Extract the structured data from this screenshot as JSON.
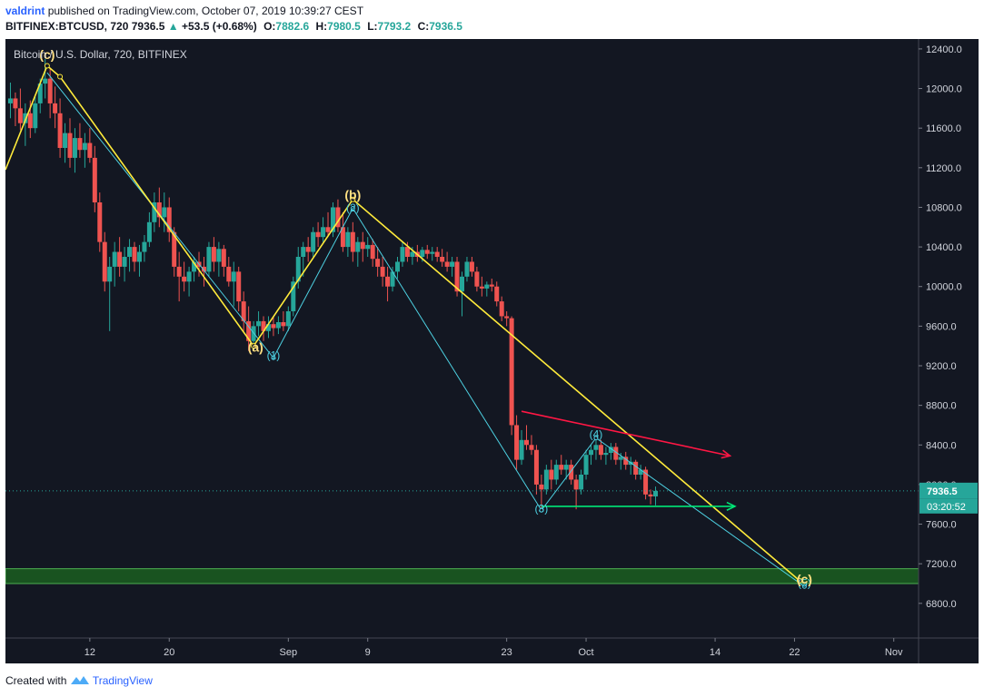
{
  "header": {
    "author": "valdrint",
    "published_text": "published on TradingView.com, October 07, 2019 10:39:27 CEST",
    "symbol": "BITFINEX:BTCUSD",
    "interval": "720",
    "last": "7936.5",
    "change": "+53.5 (+0.68%)",
    "open_label": "O:",
    "open": "7882.6",
    "high_label": "H:",
    "high": "7980.5",
    "low_label": "L:",
    "low": "7793.2",
    "close_label": "C:",
    "close": "7936.5"
  },
  "footer": {
    "created_with": "Created with",
    "brand": "TradingView"
  },
  "colors": {
    "background": "#131722",
    "up": "#26a69a",
    "down": "#ef5350",
    "wave_yellow": "#ffeb3b",
    "wave_cyan": "#4dd0e1",
    "resistance_red": "#ff1744",
    "support_green": "#00e676",
    "zone_green": "#1b5e20"
  },
  "chart_data": {
    "type": "candlestick",
    "title": "Bitcoin / U.S. Dollar, 720, BITFINEX",
    "legend": "Bitcoin / U.S. Dollar, 720, BITFINEX",
    "grid": false,
    "y_axis": {
      "ticks": [
        6800,
        7200,
        7600,
        8000,
        8400,
        8800,
        9200,
        9600,
        10000,
        10400,
        10800,
        11200,
        11600,
        12000,
        12400
      ],
      "tick_labels": [
        "6800.0",
        "7200.0",
        "7600.0",
        "8000.0",
        "8400.0",
        "8800.0",
        "9200.0",
        "9600.0",
        "10000.0",
        "10400.0",
        "10800.0",
        "11200.0",
        "11600.0",
        "12000.0",
        "12400.0"
      ],
      "range": [
        6450,
        12500
      ]
    },
    "x_axis": {
      "labels": [
        "12",
        "20",
        "Sep",
        "9",
        "23",
        "Oct",
        "14",
        "22",
        "Nov"
      ],
      "label_days": [
        12,
        20,
        32,
        40,
        54,
        62,
        75,
        83,
        93
      ],
      "range_days": [
        3.5,
        95.5
      ],
      "day_note": "days counted from Aug 0, 2019 (Sep 1 = 32, Oct 1 = 62)"
    },
    "current_price": {
      "value": 7936.5,
      "label": "7936.5",
      "countdown": "03:20:52"
    },
    "wave_labels": [
      {
        "text": "(c)",
        "day": 7.7,
        "price": 12300,
        "color": "yellow"
      },
      {
        "text": "(a)",
        "day": 28.7,
        "price": 9340,
        "color": "yellow"
      },
      {
        "text": "(b)",
        "day": 38.5,
        "price": 10880,
        "color": "yellow"
      },
      {
        "text": "(1)",
        "day": 30.5,
        "price": 9270,
        "color": "cyan"
      },
      {
        "text": "(2)",
        "day": 38.5,
        "price": 10760,
        "color": "cyan"
      },
      {
        "text": "(3)",
        "day": 57.5,
        "price": 7720,
        "color": "cyan"
      },
      {
        "text": "(4)",
        "day": 63,
        "price": 8470,
        "color": "cyan"
      },
      {
        "text": "(5)",
        "day": 84,
        "price": 6970,
        "color": "cyan"
      },
      {
        "text": "(c)",
        "day": 84,
        "price": 7000,
        "color": "yellow"
      }
    ],
    "yellow_wave": [
      [
        3.5,
        11180
      ],
      [
        7.7,
        12230
      ],
      [
        9,
        12120
      ],
      [
        28.5,
        9400
      ],
      [
        38.5,
        10880
      ],
      [
        83.5,
        7030
      ]
    ],
    "cyan_wave": [
      [
        7.7,
        12160
      ],
      [
        30.5,
        9280
      ],
      [
        38.5,
        10790
      ],
      [
        57.5,
        7740
      ],
      [
        63,
        8470
      ],
      [
        84,
        6970
      ]
    ],
    "resistance_line": [
      [
        55.5,
        8740
      ],
      [
        76.5,
        8290
      ]
    ],
    "support_line": [
      [
        57.5,
        7780
      ],
      [
        77,
        7780
      ]
    ],
    "support_zone": {
      "low": 7000,
      "high": 7150
    },
    "candles": [
      {
        "day": 4.0,
        "o": 11850,
        "h": 12060,
        "l": 11700,
        "c": 11900
      },
      {
        "day": 4.5,
        "o": 11900,
        "h": 11960,
        "l": 11620,
        "c": 11800
      },
      {
        "day": 5.0,
        "o": 11800,
        "h": 12000,
        "l": 11580,
        "c": 11650
      },
      {
        "day": 5.5,
        "o": 11650,
        "h": 11850,
        "l": 11420,
        "c": 11750
      },
      {
        "day": 6.0,
        "o": 11750,
        "h": 11880,
        "l": 11500,
        "c": 11600
      },
      {
        "day": 6.5,
        "o": 11600,
        "h": 11920,
        "l": 11550,
        "c": 11850
      },
      {
        "day": 7.0,
        "o": 11850,
        "h": 12100,
        "l": 11750,
        "c": 12050
      },
      {
        "day": 7.5,
        "o": 12050,
        "h": 12300,
        "l": 11900,
        "c": 12100
      },
      {
        "day": 8.0,
        "o": 12100,
        "h": 12200,
        "l": 11700,
        "c": 11850
      },
      {
        "day": 8.5,
        "o": 11850,
        "h": 12020,
        "l": 11600,
        "c": 11750
      },
      {
        "day": 9.0,
        "o": 11750,
        "h": 11900,
        "l": 11300,
        "c": 11400
      },
      {
        "day": 9.5,
        "o": 11400,
        "h": 11650,
        "l": 11250,
        "c": 11550
      },
      {
        "day": 10.0,
        "o": 11550,
        "h": 11700,
        "l": 11200,
        "c": 11300
      },
      {
        "day": 10.5,
        "o": 11300,
        "h": 11600,
        "l": 11150,
        "c": 11500
      },
      {
        "day": 11.0,
        "o": 11500,
        "h": 11650,
        "l": 11300,
        "c": 11380
      },
      {
        "day": 11.5,
        "o": 11380,
        "h": 11550,
        "l": 11200,
        "c": 11450
      },
      {
        "day": 12.0,
        "o": 11450,
        "h": 11600,
        "l": 11250,
        "c": 11300
      },
      {
        "day": 12.5,
        "o": 11300,
        "h": 11420,
        "l": 10750,
        "c": 10850
      },
      {
        "day": 13.0,
        "o": 10850,
        "h": 10950,
        "l": 10350,
        "c": 10450
      },
      {
        "day": 13.5,
        "o": 10450,
        "h": 10550,
        "l": 9950,
        "c": 10050
      },
      {
        "day": 14.0,
        "o": 10050,
        "h": 10300,
        "l": 9550,
        "c": 10200
      },
      {
        "day": 14.5,
        "o": 10200,
        "h": 10450,
        "l": 10000,
        "c": 10350
      },
      {
        "day": 15.0,
        "o": 10350,
        "h": 10500,
        "l": 10100,
        "c": 10200
      },
      {
        "day": 15.5,
        "o": 10200,
        "h": 10400,
        "l": 10050,
        "c": 10300
      },
      {
        "day": 16.0,
        "o": 10300,
        "h": 10480,
        "l": 10150,
        "c": 10400
      },
      {
        "day": 16.5,
        "o": 10400,
        "h": 10450,
        "l": 10150,
        "c": 10250
      },
      {
        "day": 17.0,
        "o": 10250,
        "h": 10420,
        "l": 10100,
        "c": 10350
      },
      {
        "day": 17.5,
        "o": 10350,
        "h": 10520,
        "l": 10250,
        "c": 10450
      },
      {
        "day": 18.0,
        "o": 10450,
        "h": 10750,
        "l": 10400,
        "c": 10650
      },
      {
        "day": 18.5,
        "o": 10650,
        "h": 10950,
        "l": 10550,
        "c": 10850
      },
      {
        "day": 19.0,
        "o": 10850,
        "h": 11000,
        "l": 10600,
        "c": 10700
      },
      {
        "day": 19.5,
        "o": 10700,
        "h": 10950,
        "l": 10550,
        "c": 10800
      },
      {
        "day": 20.0,
        "o": 10800,
        "h": 10900,
        "l": 10450,
        "c": 10550
      },
      {
        "day": 20.5,
        "o": 10550,
        "h": 10600,
        "l": 10100,
        "c": 10200
      },
      {
        "day": 21.0,
        "o": 10200,
        "h": 10350,
        "l": 9850,
        "c": 10100
      },
      {
        "day": 21.5,
        "o": 10100,
        "h": 10250,
        "l": 9950,
        "c": 10050
      },
      {
        "day": 22.0,
        "o": 10050,
        "h": 10200,
        "l": 9900,
        "c": 10150
      },
      {
        "day": 22.5,
        "o": 10150,
        "h": 10300,
        "l": 10050,
        "c": 10250
      },
      {
        "day": 23.0,
        "o": 10250,
        "h": 10350,
        "l": 10100,
        "c": 10200
      },
      {
        "day": 23.5,
        "o": 10200,
        "h": 10300,
        "l": 10000,
        "c": 10150
      },
      {
        "day": 24.0,
        "o": 10150,
        "h": 10450,
        "l": 10100,
        "c": 10400
      },
      {
        "day": 24.5,
        "o": 10400,
        "h": 10500,
        "l": 10150,
        "c": 10250
      },
      {
        "day": 25.0,
        "o": 10250,
        "h": 10450,
        "l": 10100,
        "c": 10380
      },
      {
        "day": 25.5,
        "o": 10380,
        "h": 10420,
        "l": 10100,
        "c": 10200
      },
      {
        "day": 26.0,
        "o": 10200,
        "h": 10300,
        "l": 10000,
        "c": 10050
      },
      {
        "day": 26.5,
        "o": 10050,
        "h": 10250,
        "l": 9800,
        "c": 10150
      },
      {
        "day": 27.0,
        "o": 10150,
        "h": 10200,
        "l": 9750,
        "c": 9850
      },
      {
        "day": 27.5,
        "o": 9850,
        "h": 9950,
        "l": 9550,
        "c": 9650
      },
      {
        "day": 28.0,
        "o": 9650,
        "h": 9800,
        "l": 9350,
        "c": 9450
      },
      {
        "day": 28.5,
        "o": 9450,
        "h": 9650,
        "l": 9360,
        "c": 9600
      },
      {
        "day": 29.0,
        "o": 9600,
        "h": 9750,
        "l": 9500,
        "c": 9650
      },
      {
        "day": 29.5,
        "o": 9650,
        "h": 9700,
        "l": 9450,
        "c": 9550
      },
      {
        "day": 30.0,
        "o": 9550,
        "h": 9700,
        "l": 9480,
        "c": 9620
      },
      {
        "day": 30.5,
        "o": 9620,
        "h": 9700,
        "l": 9500,
        "c": 9580
      },
      {
        "day": 31.0,
        "o": 9580,
        "h": 9700,
        "l": 9520,
        "c": 9640
      },
      {
        "day": 31.5,
        "o": 9640,
        "h": 9750,
        "l": 9550,
        "c": 9600
      },
      {
        "day": 32.0,
        "o": 9600,
        "h": 9800,
        "l": 9550,
        "c": 9750
      },
      {
        "day": 32.5,
        "o": 9750,
        "h": 10100,
        "l": 9700,
        "c": 10050
      },
      {
        "day": 33.0,
        "o": 10050,
        "h": 10400,
        "l": 9980,
        "c": 10300
      },
      {
        "day": 33.5,
        "o": 10300,
        "h": 10450,
        "l": 10100,
        "c": 10400
      },
      {
        "day": 34.0,
        "o": 10400,
        "h": 10500,
        "l": 10250,
        "c": 10350
      },
      {
        "day": 34.5,
        "o": 10350,
        "h": 10600,
        "l": 10300,
        "c": 10550
      },
      {
        "day": 35.0,
        "o": 10550,
        "h": 10650,
        "l": 10400,
        "c": 10500
      },
      {
        "day": 35.5,
        "o": 10500,
        "h": 10700,
        "l": 10450,
        "c": 10600
      },
      {
        "day": 36.0,
        "o": 10600,
        "h": 10750,
        "l": 10500,
        "c": 10550
      },
      {
        "day": 36.5,
        "o": 10550,
        "h": 10850,
        "l": 10500,
        "c": 10800
      },
      {
        "day": 37.0,
        "o": 10800,
        "h": 10880,
        "l": 10550,
        "c": 10600
      },
      {
        "day": 37.5,
        "o": 10600,
        "h": 10750,
        "l": 10350,
        "c": 10400
      },
      {
        "day": 38.0,
        "o": 10400,
        "h": 10600,
        "l": 10300,
        "c": 10550
      },
      {
        "day": 38.5,
        "o": 10550,
        "h": 10650,
        "l": 10250,
        "c": 10350
      },
      {
        "day": 39.0,
        "o": 10350,
        "h": 10500,
        "l": 10200,
        "c": 10450
      },
      {
        "day": 39.5,
        "o": 10450,
        "h": 10550,
        "l": 10250,
        "c": 10380
      },
      {
        "day": 40.0,
        "o": 10380,
        "h": 10500,
        "l": 10300,
        "c": 10420
      },
      {
        "day": 40.5,
        "o": 10420,
        "h": 10480,
        "l": 10200,
        "c": 10280
      },
      {
        "day": 41.0,
        "o": 10280,
        "h": 10400,
        "l": 10100,
        "c": 10200
      },
      {
        "day": 41.5,
        "o": 10200,
        "h": 10300,
        "l": 10000,
        "c": 10100
      },
      {
        "day": 42.0,
        "o": 10100,
        "h": 10200,
        "l": 9850,
        "c": 10000
      },
      {
        "day": 42.5,
        "o": 10000,
        "h": 10200,
        "l": 9950,
        "c": 10150
      },
      {
        "day": 43.0,
        "o": 10150,
        "h": 10300,
        "l": 10080,
        "c": 10250
      },
      {
        "day": 43.5,
        "o": 10250,
        "h": 10450,
        "l": 10200,
        "c": 10400
      },
      {
        "day": 44.0,
        "o": 10400,
        "h": 10450,
        "l": 10250,
        "c": 10300
      },
      {
        "day": 44.5,
        "o": 10300,
        "h": 10400,
        "l": 10220,
        "c": 10350
      },
      {
        "day": 45.0,
        "o": 10350,
        "h": 10420,
        "l": 10250,
        "c": 10300
      },
      {
        "day": 45.5,
        "o": 10300,
        "h": 10400,
        "l": 10250,
        "c": 10370
      },
      {
        "day": 46.0,
        "o": 10370,
        "h": 10420,
        "l": 10280,
        "c": 10330
      },
      {
        "day": 46.5,
        "o": 10330,
        "h": 10400,
        "l": 10260,
        "c": 10350
      },
      {
        "day": 47.0,
        "o": 10350,
        "h": 10400,
        "l": 10250,
        "c": 10300
      },
      {
        "day": 47.5,
        "o": 10300,
        "h": 10380,
        "l": 10200,
        "c": 10250
      },
      {
        "day": 48.0,
        "o": 10250,
        "h": 10350,
        "l": 10150,
        "c": 10200
      },
      {
        "day": 48.5,
        "o": 10200,
        "h": 10300,
        "l": 10100,
        "c": 10250
      },
      {
        "day": 49.0,
        "o": 10250,
        "h": 10300,
        "l": 9900,
        "c": 9950
      },
      {
        "day": 49.5,
        "o": 9950,
        "h": 10150,
        "l": 9700,
        "c": 10100
      },
      {
        "day": 50.0,
        "o": 10100,
        "h": 10300,
        "l": 10050,
        "c": 10250
      },
      {
        "day": 50.5,
        "o": 10250,
        "h": 10300,
        "l": 10100,
        "c": 10150
      },
      {
        "day": 51.0,
        "o": 10150,
        "h": 10200,
        "l": 9950,
        "c": 10000
      },
      {
        "day": 51.5,
        "o": 10000,
        "h": 10100,
        "l": 9900,
        "c": 9980
      },
      {
        "day": 52.0,
        "o": 9980,
        "h": 10050,
        "l": 9900,
        "c": 10020
      },
      {
        "day": 52.5,
        "o": 10020,
        "h": 10080,
        "l": 9950,
        "c": 10000
      },
      {
        "day": 53.0,
        "o": 10000,
        "h": 10050,
        "l": 9800,
        "c": 9850
      },
      {
        "day": 53.5,
        "o": 9850,
        "h": 9900,
        "l": 9650,
        "c": 9700
      },
      {
        "day": 54.0,
        "o": 9700,
        "h": 9750,
        "l": 9600,
        "c": 9680
      },
      {
        "day": 54.5,
        "o": 9680,
        "h": 9700,
        "l": 8500,
        "c": 8600
      },
      {
        "day": 55.0,
        "o": 8600,
        "h": 8700,
        "l": 8150,
        "c": 8250
      },
      {
        "day": 55.5,
        "o": 8250,
        "h": 8550,
        "l": 8200,
        "c": 8450
      },
      {
        "day": 56.0,
        "o": 8450,
        "h": 8600,
        "l": 8350,
        "c": 8400
      },
      {
        "day": 56.5,
        "o": 8400,
        "h": 8500,
        "l": 8300,
        "c": 8350
      },
      {
        "day": 57.0,
        "o": 8350,
        "h": 8400,
        "l": 7900,
        "c": 8000
      },
      {
        "day": 57.5,
        "o": 8000,
        "h": 8100,
        "l": 7750,
        "c": 7950
      },
      {
        "day": 58.0,
        "o": 7950,
        "h": 8200,
        "l": 7900,
        "c": 8150
      },
      {
        "day": 58.5,
        "o": 8150,
        "h": 8250,
        "l": 7950,
        "c": 8050
      },
      {
        "day": 59.0,
        "o": 8050,
        "h": 8250,
        "l": 8000,
        "c": 8200
      },
      {
        "day": 59.5,
        "o": 8200,
        "h": 8300,
        "l": 8100,
        "c": 8150
      },
      {
        "day": 60.0,
        "o": 8150,
        "h": 8250,
        "l": 8050,
        "c": 8200
      },
      {
        "day": 60.5,
        "o": 8200,
        "h": 8250,
        "l": 8000,
        "c": 8050
      },
      {
        "day": 61.0,
        "o": 8050,
        "h": 8100,
        "l": 7750,
        "c": 7950
      },
      {
        "day": 61.5,
        "o": 7950,
        "h": 8150,
        "l": 7900,
        "c": 8100
      },
      {
        "day": 62.0,
        "o": 8100,
        "h": 8350,
        "l": 8050,
        "c": 8300
      },
      {
        "day": 62.5,
        "o": 8300,
        "h": 8400,
        "l": 8200,
        "c": 8350
      },
      {
        "day": 63.0,
        "o": 8350,
        "h": 8470,
        "l": 8250,
        "c": 8400
      },
      {
        "day": 63.5,
        "o": 8400,
        "h": 8450,
        "l": 8250,
        "c": 8300
      },
      {
        "day": 64.0,
        "o": 8300,
        "h": 8380,
        "l": 8200,
        "c": 8320
      },
      {
        "day": 64.5,
        "o": 8320,
        "h": 8420,
        "l": 8250,
        "c": 8380
      },
      {
        "day": 65.0,
        "o": 8380,
        "h": 8420,
        "l": 8200,
        "c": 8250
      },
      {
        "day": 65.5,
        "o": 8250,
        "h": 8320,
        "l": 8150,
        "c": 8280
      },
      {
        "day": 66.0,
        "o": 8280,
        "h": 8330,
        "l": 8150,
        "c": 8200
      },
      {
        "day": 66.5,
        "o": 8200,
        "h": 8280,
        "l": 8100,
        "c": 8230
      },
      {
        "day": 67.0,
        "o": 8230,
        "h": 8250,
        "l": 8050,
        "c": 8100
      },
      {
        "day": 67.5,
        "o": 8100,
        "h": 8200,
        "l": 8050,
        "c": 8150
      },
      {
        "day": 68.0,
        "o": 8150,
        "h": 8180,
        "l": 7850,
        "c": 7900
      },
      {
        "day": 68.5,
        "o": 7900,
        "h": 7950,
        "l": 7800,
        "c": 7880
      },
      {
        "day": 69.0,
        "o": 7880,
        "h": 7980,
        "l": 7790,
        "c": 7936
      }
    ]
  }
}
